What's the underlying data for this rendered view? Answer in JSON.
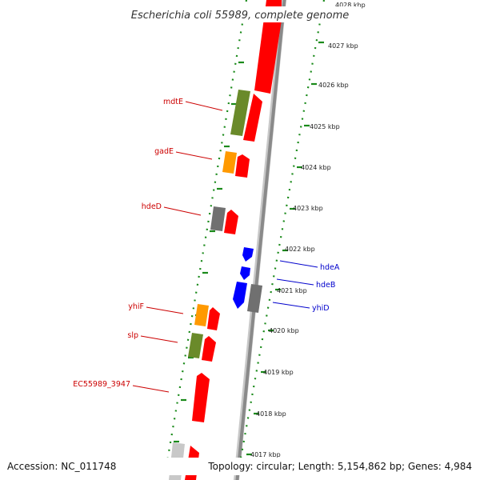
{
  "title": "Escherichia coli 55989, complete genome",
  "footer": {
    "accession": "Accession: NC_011748",
    "topology": "Topology: circular; Length: 5,154,862 bp; Genes: 4,984"
  },
  "colors": {
    "backbone": "#8a8a8a",
    "tick_ring": "#1a8a1a",
    "label_forward": "#cc0000",
    "label_reverse": "#0000cc",
    "gene_red": "#ff0000",
    "gene_green": "#6a8a2a",
    "gene_orange": "#ff9900",
    "gene_gray": "#707070",
    "gene_blue": "#0000ff",
    "gene_lightgray": "#c8c8c8"
  },
  "kbp_labels": [
    "4028 kbp",
    "4027 kbp",
    "4026 kbp",
    "4025 kbp",
    "4024 kbp",
    "4023 kbp",
    "4022 kbp",
    "4021 kbp",
    "4020 kbp",
    "4019 kbp",
    "4018 kbp",
    "4017 kbp"
  ],
  "genes_forward": [
    {
      "label": "mdtE",
      "color": "gene_green"
    },
    {
      "label": "gadE",
      "color": "gene_orange"
    },
    {
      "label": "hdeD",
      "color": "gene_gray"
    },
    {
      "label": "yhiF",
      "color": "gene_orange"
    },
    {
      "label": "slp",
      "color": "gene_green"
    },
    {
      "label": "EC55989_3947",
      "color": "gene_red"
    }
  ],
  "genes_reverse": [
    {
      "label": "hdeA",
      "color": "gene_blue"
    },
    {
      "label": "hdeB",
      "color": "gene_blue"
    },
    {
      "label": "yhiD",
      "color": "gene_gray"
    }
  ]
}
